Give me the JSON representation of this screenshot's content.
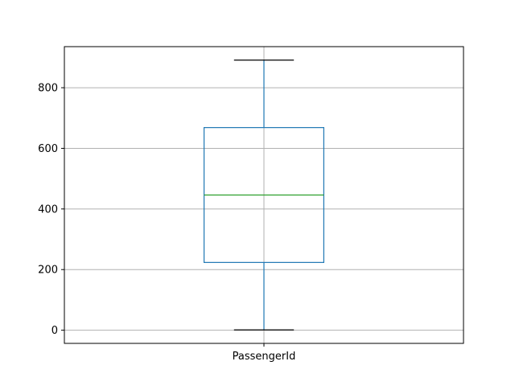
{
  "chart_data": {
    "type": "box",
    "categories": [
      "PassengerId"
    ],
    "boxes": [
      {
        "category": "PassengerId",
        "whisker_low": 1,
        "q1": 223.5,
        "median": 446,
        "q3": 668.5,
        "whisker_high": 891
      }
    ],
    "yticks": [
      0,
      200,
      400,
      600,
      800
    ],
    "ylim": [
      -43.5,
      935.5
    ],
    "grid": true,
    "colors": {
      "box": "#1f77b4",
      "whisker": "#1f77b4",
      "cap": "#000000",
      "median": "#2ca02c",
      "grid": "#b0b0b0",
      "axes": "#000000"
    }
  }
}
